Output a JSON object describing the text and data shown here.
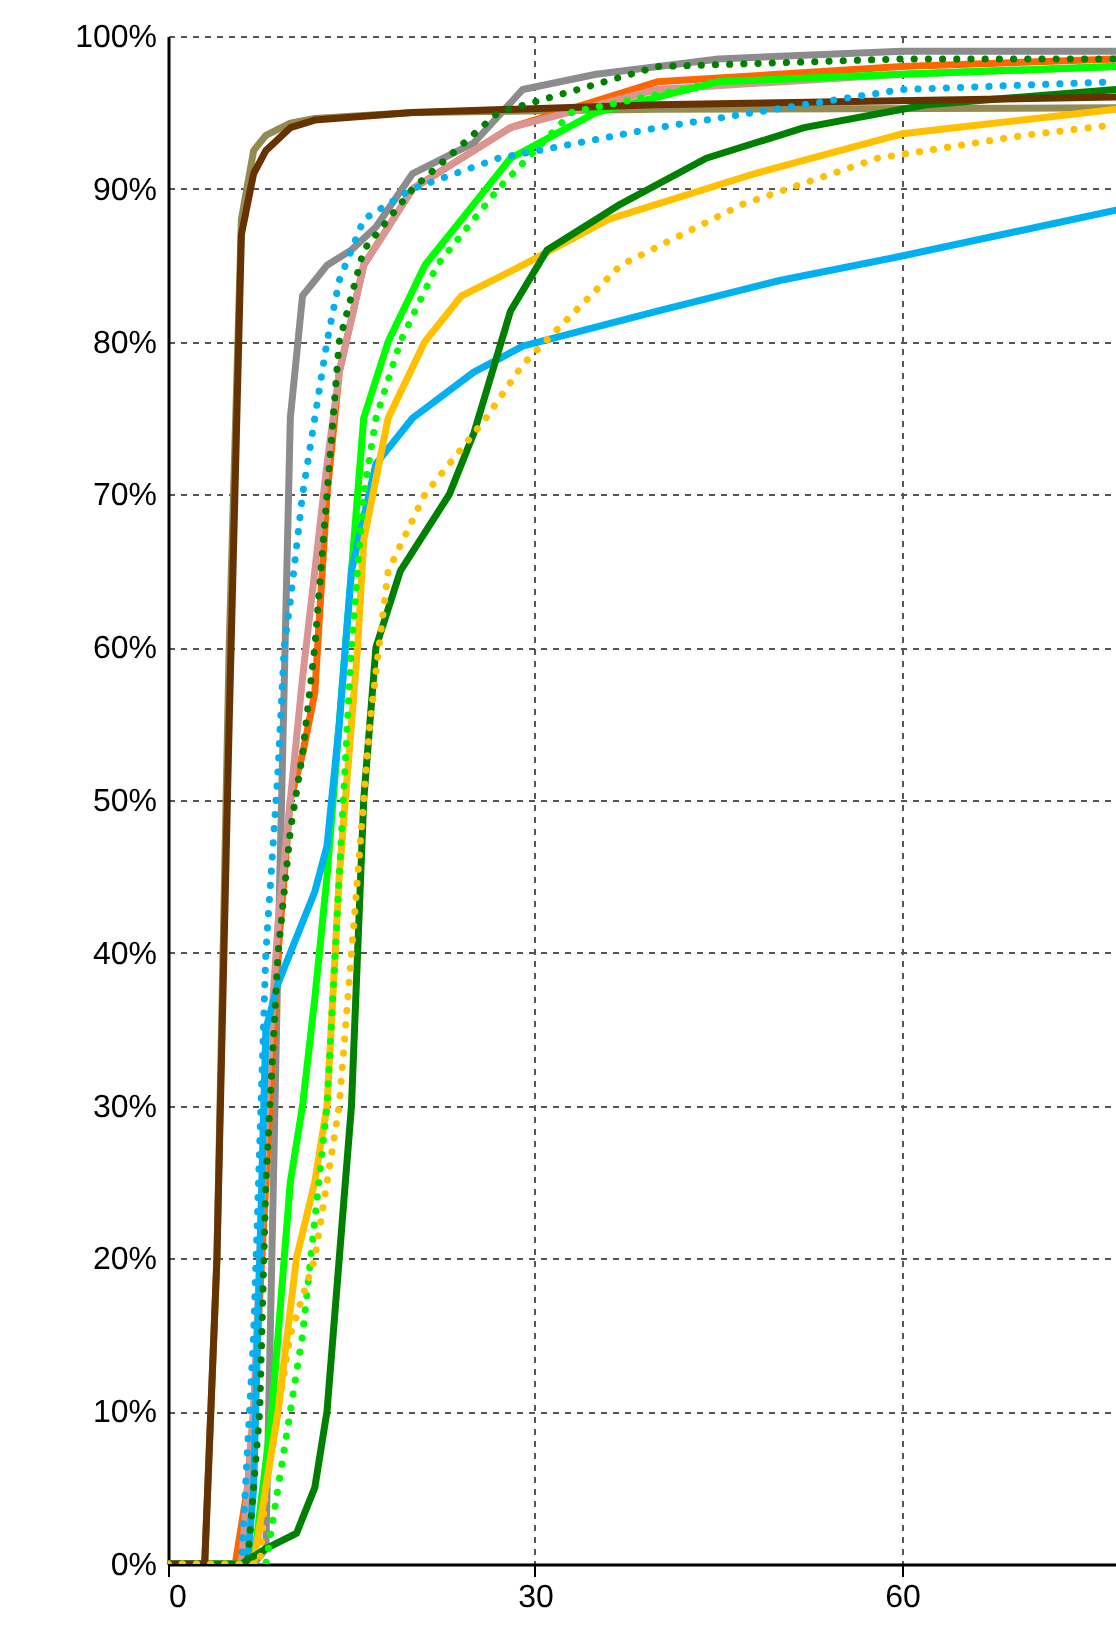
{
  "chart_data": {
    "type": "line",
    "xlim": [
      0,
      77.5
    ],
    "xticks": [
      0,
      30,
      60
    ],
    "ylim": [
      0,
      100
    ],
    "yticks": [
      {
        "value": 0,
        "label": "0%"
      },
      {
        "value": 10,
        "label": "10%"
      },
      {
        "value": 20,
        "label": "20%"
      },
      {
        "value": 30,
        "label": "30%"
      },
      {
        "value": 40,
        "label": "40%"
      },
      {
        "value": 50,
        "label": "50%"
      },
      {
        "value": 60,
        "label": "60%"
      },
      {
        "value": 70,
        "label": "70%"
      },
      {
        "value": 80,
        "label": "80%"
      },
      {
        "value": 90,
        "label": "90%"
      },
      {
        "value": 100,
        "label": "100%"
      }
    ],
    "grid": true,
    "series": [
      {
        "color": "#948a54",
        "line_style": "solid",
        "x": [
          0,
          3,
          4,
          5,
          6,
          7,
          8,
          10,
          12,
          20,
          40,
          77.5
        ],
        "values": [
          0,
          0,
          20,
          60,
          88,
          92.5,
          93.5,
          94.3,
          94.6,
          95,
          95.2,
          95.3
        ]
      },
      {
        "color": "#8c8c8c",
        "line_style": "solid",
        "x": [
          0,
          7,
          8,
          9,
          10,
          11,
          13,
          15,
          17,
          20,
          25,
          29,
          35,
          45,
          60,
          77.5
        ],
        "values": [
          0,
          0,
          1,
          40,
          75,
          83,
          85,
          86,
          87.5,
          91,
          93,
          96.5,
          97.5,
          98.5,
          99,
          99
        ]
      },
      {
        "color": "#ff6600",
        "line_style": "solid",
        "x": [
          0,
          5.5,
          6.5,
          7,
          8,
          9,
          10,
          11,
          12,
          13,
          14,
          16,
          20,
          28,
          40,
          60,
          77.5
        ],
        "values": [
          0,
          0,
          5,
          10,
          25,
          40,
          50,
          53,
          57,
          70,
          78,
          85,
          90,
          94,
          97,
          98,
          98.5
        ]
      },
      {
        "color": "#d99594",
        "line_style": "solid",
        "x": [
          0,
          6,
          7,
          8,
          9,
          10,
          11,
          12,
          13,
          14,
          16,
          20,
          28,
          40,
          60,
          77.5
        ],
        "values": [
          0,
          0,
          10,
          30,
          42,
          50,
          58,
          65,
          72,
          78,
          85,
          90,
          94,
          96.5,
          97.5,
          98
        ]
      },
      {
        "color": "#00b0f0",
        "line_style": "dotted",
        "x": [
          0,
          6,
          7,
          8,
          9,
          9.5,
          10,
          11,
          12,
          13,
          14,
          16,
          20,
          27,
          40,
          60,
          77.5
        ],
        "values": [
          0,
          0,
          15,
          40,
          52,
          60,
          63,
          70,
          75,
          80,
          84,
          88,
          90,
          92,
          94,
          96.5,
          97
        ]
      },
      {
        "color": "#008000",
        "line_style": "dotted",
        "x": [
          0,
          6.5,
          7.5,
          8,
          9,
          10,
          11,
          12,
          13,
          14,
          16,
          20,
          27,
          40,
          60,
          77.5
        ],
        "values": [
          0,
          0,
          10,
          25,
          40,
          48,
          53,
          60,
          70,
          80,
          86,
          90,
          95,
          98,
          98.5,
          98.5
        ]
      },
      {
        "color": "#00ff00",
        "line_style": "solid",
        "x": [
          0,
          7,
          8.5,
          10,
          11,
          12,
          13,
          14.5,
          16,
          18,
          21,
          25,
          28,
          35,
          45,
          60,
          77.5
        ],
        "values": [
          0,
          0,
          10,
          25,
          30,
          37,
          45,
          60,
          75,
          80,
          85,
          89,
          92,
          95,
          97,
          97.5,
          98
        ]
      },
      {
        "color": "#00ff00",
        "line_style": "dotted",
        "x": [
          0,
          8,
          9,
          11,
          13,
          14,
          15,
          16,
          17,
          19,
          22,
          27,
          33,
          45,
          60,
          77.5
        ],
        "values": [
          0,
          0,
          5,
          15,
          30,
          45,
          60,
          70,
          75,
          80,
          85,
          90,
          95,
          97,
          97.5,
          98
        ]
      },
      {
        "color": "#00b0f0",
        "line_style": "solid",
        "x": [
          0,
          6.5,
          7,
          8,
          9,
          10,
          11,
          12,
          13,
          14,
          15,
          17,
          20,
          25,
          29,
          40,
          50,
          60,
          77.5
        ],
        "values": [
          0,
          0,
          5,
          35,
          38,
          40,
          42,
          44,
          47,
          55,
          65,
          72,
          75,
          78,
          79.7,
          82,
          84,
          85.6,
          88.6
        ]
      },
      {
        "color": "#ffc000",
        "line_style": "solid",
        "x": [
          0,
          7,
          8,
          9,
          10.5,
          12,
          13,
          14,
          15,
          15.5,
          16,
          18,
          21,
          24,
          29,
          36,
          48,
          60,
          77.5
        ],
        "values": [
          0,
          0,
          5,
          10,
          20,
          25,
          30,
          45,
          55,
          60,
          67,
          75,
          80,
          83,
          85,
          88,
          91,
          93.6,
          95.2
        ]
      },
      {
        "color": "#ffc000",
        "line_style": "dotted",
        "x": [
          0,
          7.5,
          8,
          9,
          10,
          12,
          13,
          14,
          15,
          16.5,
          18,
          21,
          26,
          29,
          37,
          47,
          58,
          70,
          77.5
        ],
        "values": [
          0,
          0,
          5,
          10,
          15,
          20,
          25,
          30,
          40,
          55,
          65,
          70,
          75,
          78.5,
          85,
          89,
          92,
          93.5,
          94.2
        ]
      },
      {
        "color": "#008000",
        "line_style": "solid",
        "x": [
          0,
          6,
          8,
          10.5,
          12,
          13,
          14,
          15,
          16,
          17,
          19,
          23,
          25,
          28,
          31,
          37,
          44,
          52,
          62,
          77.5
        ],
        "values": [
          0,
          0,
          1,
          2,
          5,
          10,
          20,
          30,
          50,
          60,
          65,
          70,
          74,
          82,
          86,
          89,
          92,
          94,
          95.5,
          96.5
        ]
      },
      {
        "color": "#663300",
        "line_style": "solid",
        "x": [
          0,
          3,
          4,
          5,
          6,
          7,
          8,
          10,
          12,
          20,
          40,
          77.5
        ],
        "values": [
          0,
          0,
          20,
          55,
          87,
          91,
          92.5,
          94,
          94.5,
          95,
          95.5,
          96
        ]
      }
    ]
  }
}
